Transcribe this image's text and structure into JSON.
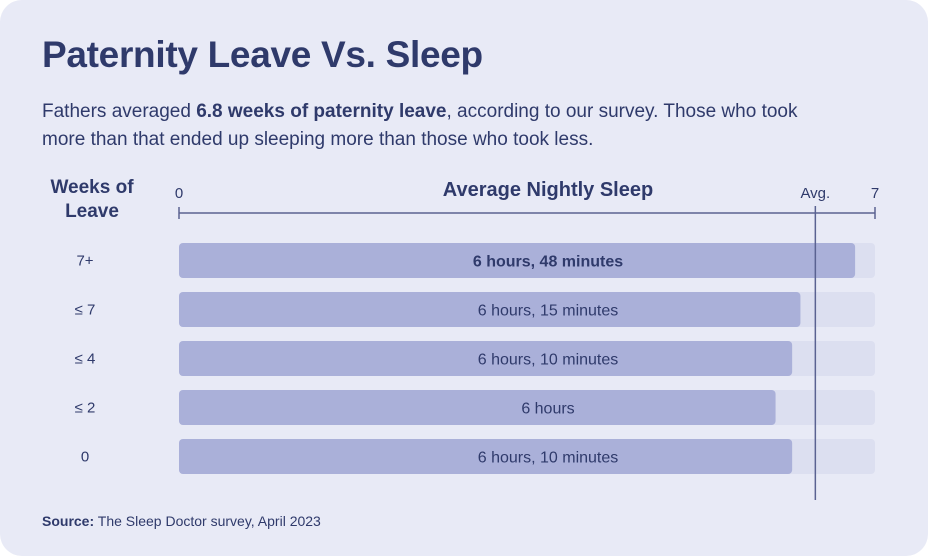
{
  "title": "Paternity Leave Vs. Sleep",
  "subtitle": {
    "before": "Fathers averaged ",
    "highlight": "6.8 weeks of paternity leave",
    "after": ", according to our survey. Those who took more than that ended up sleeping more than those who took less."
  },
  "source": {
    "label": "Source:",
    "text": " The Sleep Doctor survey, April 2023"
  },
  "colors": {
    "card": "#e8eaf6",
    "track": "#dcdff0",
    "bar": "#aab0d9",
    "text": "#2f3a6b",
    "axis": "#5a6291"
  },
  "chart_data": {
    "type": "bar",
    "orientation": "horizontal",
    "row_axis_label": "Weeks of Leave",
    "value_axis_label": "Average Nightly Sleep",
    "xlim": [
      0,
      7
    ],
    "x_tick_labels": [
      "0",
      "7"
    ],
    "reference_line": {
      "label": "Avg.",
      "value": 6.4
    },
    "categories": [
      "7+",
      "≤ 7",
      "≤ 4",
      "≤ 2",
      "0"
    ],
    "values": [
      6.8,
      6.25,
      6.1667,
      6.0,
      6.1667
    ],
    "value_labels": [
      "6 hours, 48 minutes",
      "6 hours, 15 minutes",
      "6 hours, 10 minutes",
      "6 hours",
      "6 hours, 10 minutes"
    ],
    "highlighted_index": 0
  }
}
